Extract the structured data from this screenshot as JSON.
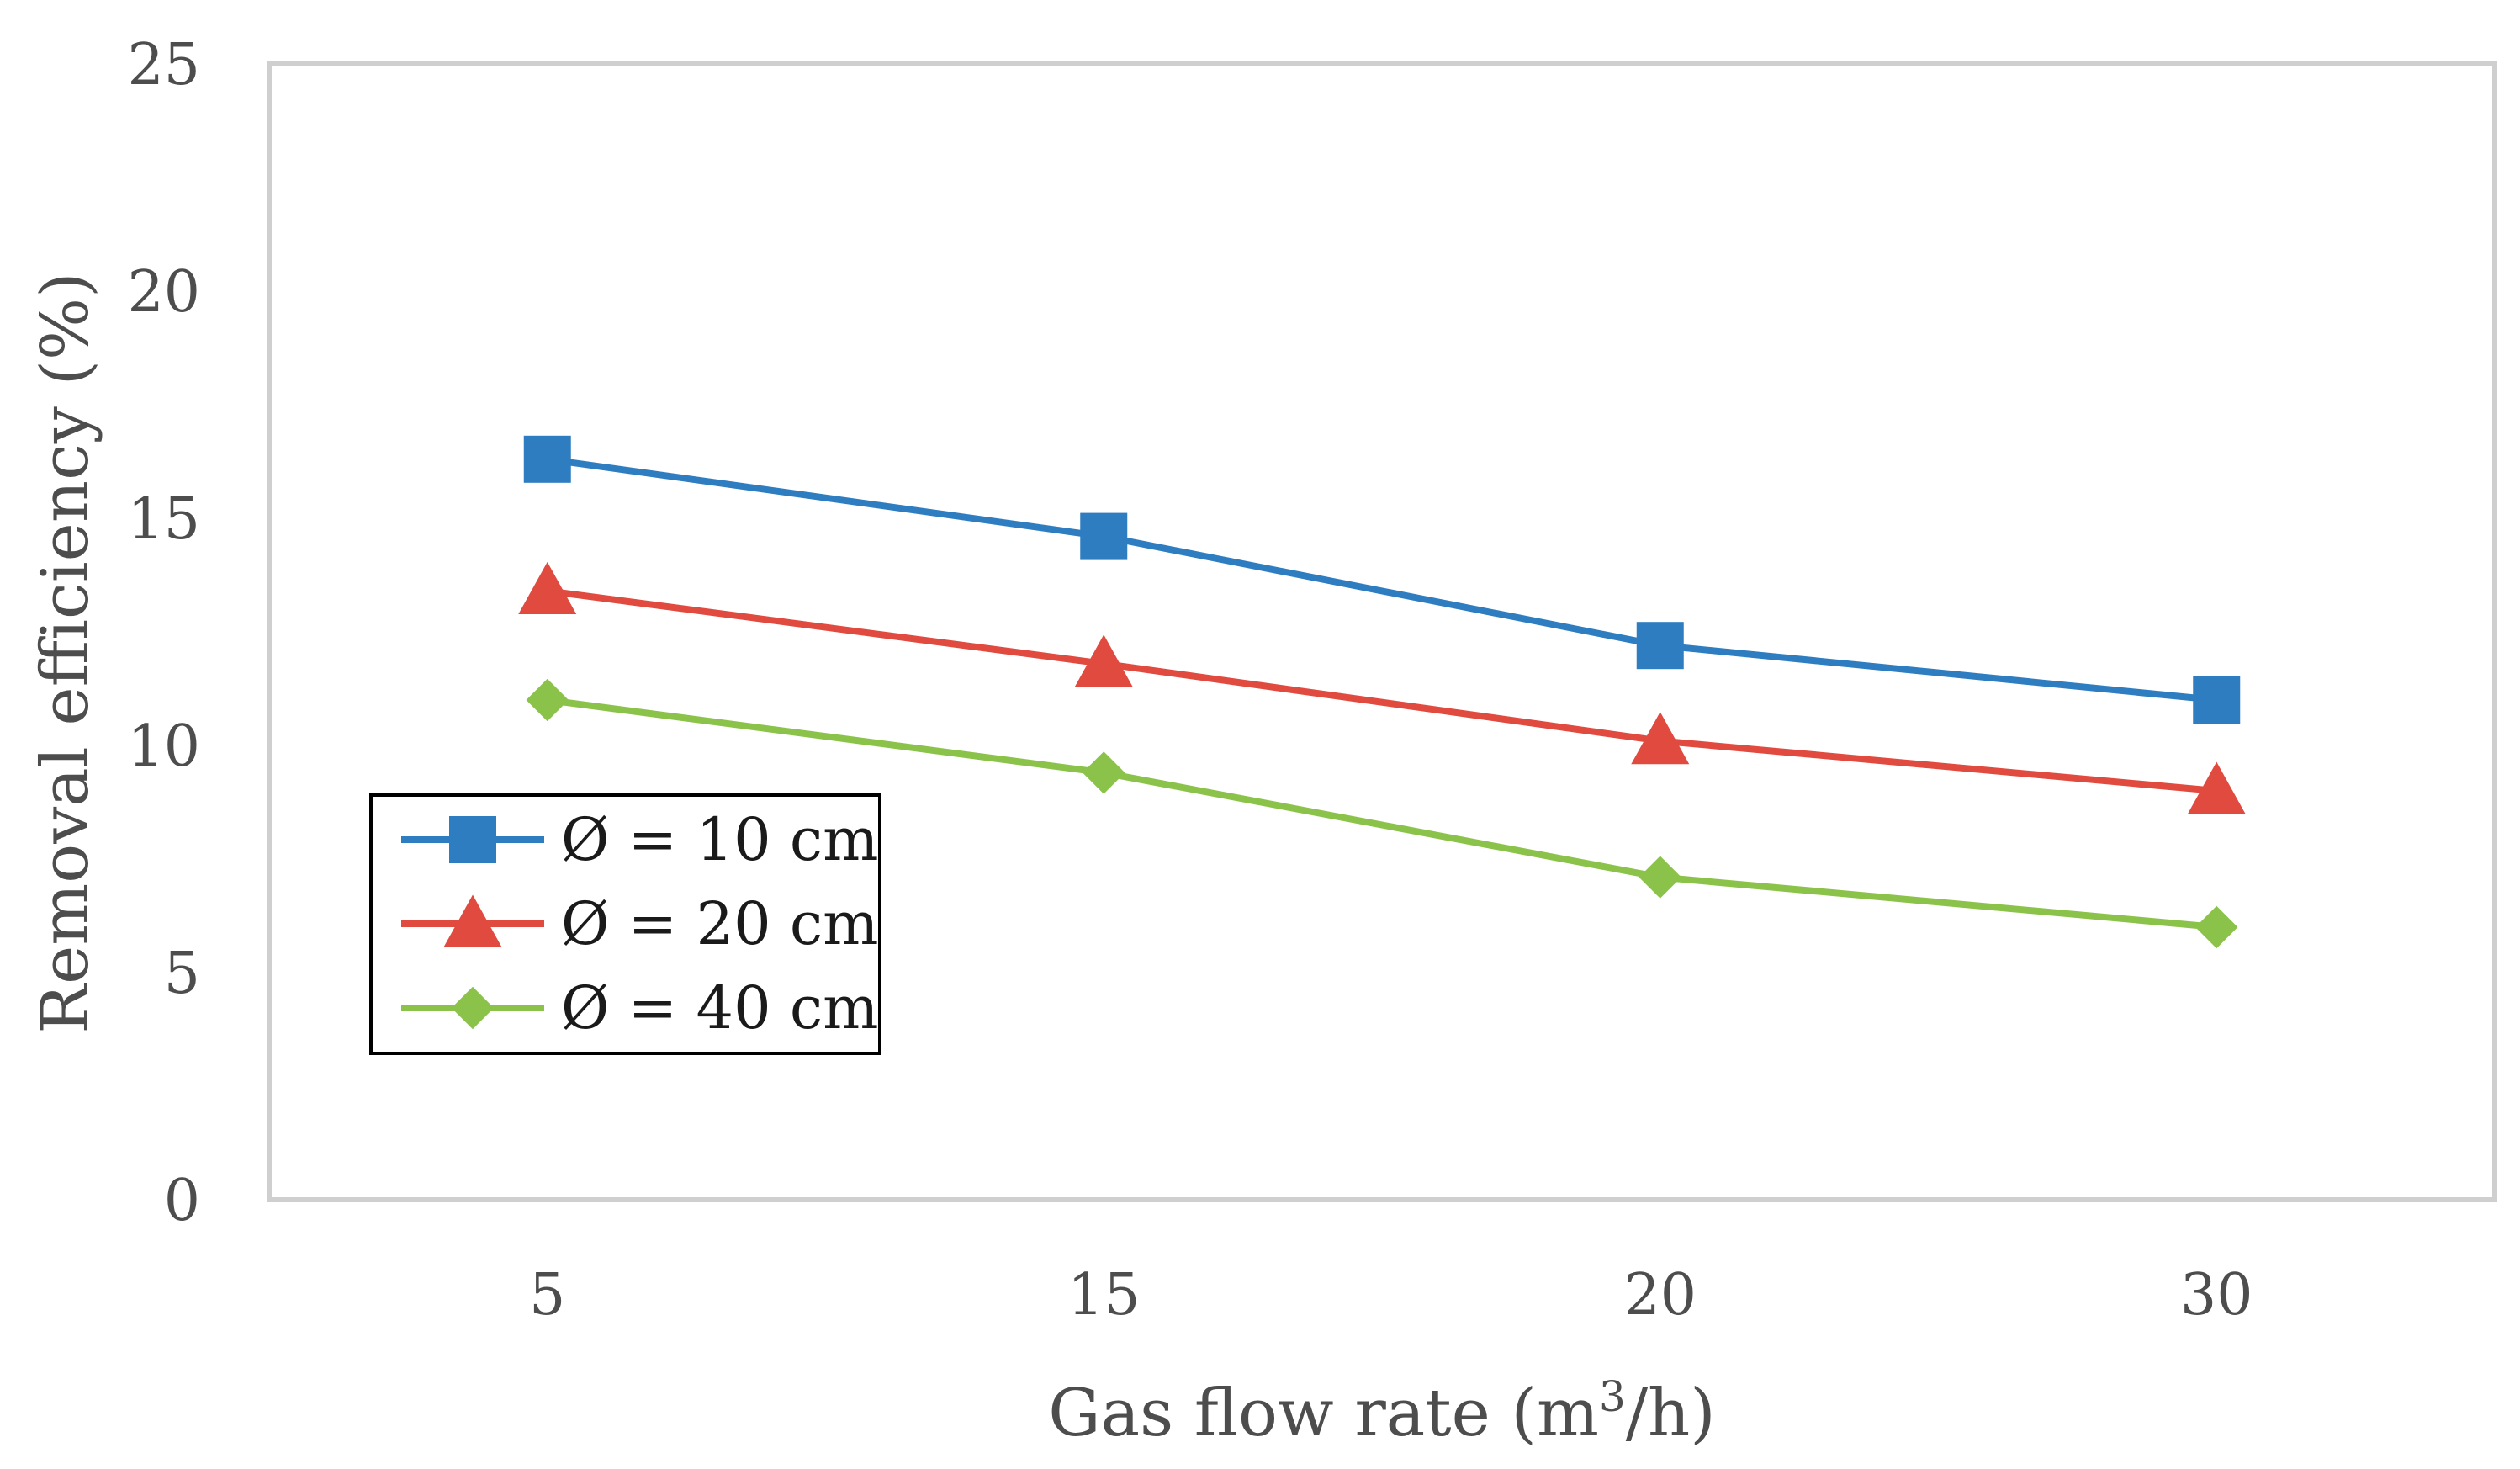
{
  "chart_data": {
    "type": "line",
    "title": "",
    "categories": [
      "5",
      "15",
      "20",
      "30"
    ],
    "xlabel": {
      "main": "Gas flow rate (m",
      "sup": "3",
      "tail": "/h)"
    },
    "ylabel": "Removal efficiency (%)",
    "ylim": [
      0,
      25
    ],
    "yticks": [
      "0",
      "5",
      "10",
      "15",
      "20",
      "25"
    ],
    "grid": false,
    "legend_position": "middle-left",
    "series": [
      {
        "name": "Ø = 10 cm",
        "marker": "square",
        "color": "#2e7dc1",
        "values": [
          16.3,
          14.6,
          12.2,
          11.0
        ]
      },
      {
        "name": "Ø = 20 cm",
        "marker": "triangle",
        "color": "#e04a3f",
        "values": [
          13.4,
          11.8,
          10.1,
          9.0
        ]
      },
      {
        "name": "Ø = 40 cm",
        "marker": "diamond",
        "color": "#8bc34a",
        "values": [
          11.0,
          9.4,
          7.1,
          6.0
        ]
      }
    ],
    "frame_color": "#cfcfcf",
    "legend_border_color": "#000000"
  }
}
